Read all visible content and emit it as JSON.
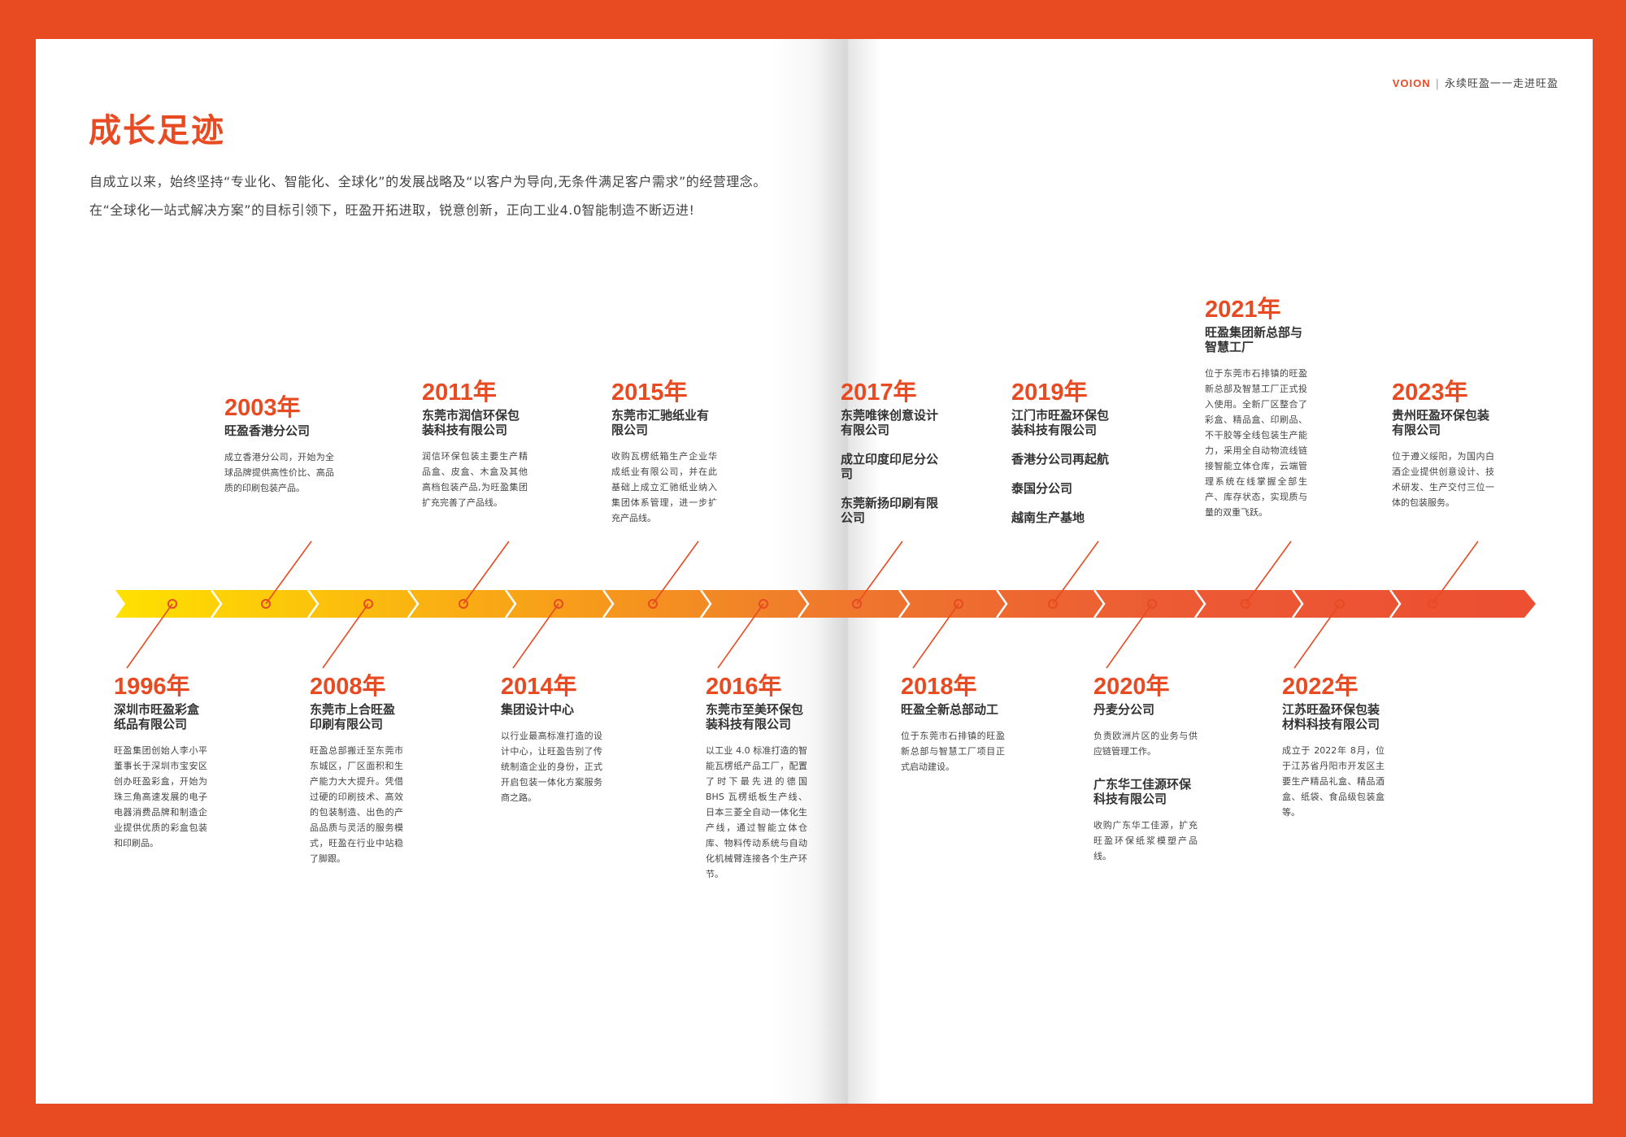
{
  "brand": {
    "logo": "VOION",
    "separator": "|",
    "slogan": "永续旺盈一一走进旺盈"
  },
  "title": "成长足迹",
  "intro": "自成立以来，始终坚持“专业化、智能化、全球化”的发展战略及“以客户为导向,无条件满足客户需求”的经营理念。在“全球化一站式解决方案”的目标引领下，旺盈开拓进取，锐意创新，正向工业4.0智能制造不断迈进!",
  "colors": {
    "accent": "#e84a22",
    "arrow_start": "#ffe100",
    "arrow_end": "#ec4f32"
  },
  "timeline": {
    "upper": [
      {
        "year": "2003年",
        "heading": "旺盈香港分公司",
        "desc": "成立香港分公司，开始为全球品牌提供高性价比、高品质的印刷包装产品。"
      },
      {
        "year": "2011年",
        "heading": "东莞市润信环保包装科技有限公司",
        "desc": "润信环保包装主要生产精品盒、皮盒、木盒及其他高档包装产品,为旺盈集团扩充完善了产品线。"
      },
      {
        "year": "2015年",
        "heading": "东莞市汇驰纸业有限公司",
        "desc": "收购瓦楞纸箱生产企业华成纸业有限公司，并在此基础上成立汇驰纸业纳入集团体系管理，进一步扩充产品线。"
      },
      {
        "year": "2017年",
        "heading": "东莞唯徕创意设计有限公司",
        "sub1": "成立印度印尼分公司",
        "sub2": "东莞新扬印刷有限公司"
      },
      {
        "year": "2019年",
        "heading": "江门市旺盈环保包装科技有限公司",
        "sub1": "香港分公司再起航",
        "sub2": "泰国分公司",
        "sub3": "越南生产基地"
      },
      {
        "year": "2021年",
        "heading": "旺盈集团新总部与智慧工厂",
        "desc": "位于东莞市石排镇的旺盈新总部及智慧工厂正式投入使用。全新厂区整合了彩盒、精品盒、印刷品、不干胶等全线包装生产能力，采用全自动物流线链接智能立体仓库，云端管理系统在线掌握全部生产、库存状态，实现质与量的双重飞跃。"
      },
      {
        "year": "2023年",
        "heading": "贵州旺盈环保包装有限公司",
        "desc": "位于遵义绥阳，为国内白酒企业提供创意设计、技术研发、生产交付三位一体的包装服务。"
      }
    ],
    "lower": [
      {
        "year": "1996年",
        "heading": "深圳市旺盈彩盒纸品有限公司",
        "desc": "旺盈集团创始人李小平董事长于深圳市宝安区创办旺盈彩盒，开始为珠三角高速发展的电子电器消费品牌和制造企业提供优质的彩盒包装和印刷品。"
      },
      {
        "year": "2008年",
        "heading": "东莞市上合旺盈印刷有限公司",
        "desc": "旺盈总部搬迁至东莞市东城区，厂区面积和生产能力大大提升。凭借过硬的印刷技术、高效的包装制造、出色的产品品质与灵活的服务模式，旺盈在行业中站稳了脚跟。"
      },
      {
        "year": "2014年",
        "heading": "集团设计中心",
        "desc": "以行业最高标准打造的设计中心，让旺盈告别了传统制造企业的身份，正式开启包装一体化方案服务商之路。"
      },
      {
        "year": "2016年",
        "heading": "东莞市至美环保包装科技有限公司",
        "desc": "以工业 4.0 标准打造的智能瓦楞纸产品工厂，配置了时下最先进的德国 BHS 瓦楞纸板生产线、日本三菱全自动一体化生产线，通过智能立体仓库、物料传动系统与自动化机械臂连接各个生产环节。"
      },
      {
        "year": "2018年",
        "heading": "旺盈全新总部动工",
        "desc": "位于东莞市石排镇的旺盈新总部与智慧工厂项目正式启动建设。"
      },
      {
        "year": "2020年",
        "heading": "丹麦分公司",
        "desc": "负责欧洲片区的业务与供应链管理工作。",
        "sub_heading": "广东华工佳源环保科技有限公司",
        "sub_desc": "收购广东华工佳源，扩充旺盈环保纸浆模塑产品线。"
      },
      {
        "year": "2022年",
        "heading": "江苏旺盈环保包装材料科技有限公司",
        "desc": "成立于 2022年 8月，位于江苏省丹阳市开发区主要生产精品礼盒、精品酒盒、纸袋、食品级包装盒等。"
      }
    ]
  }
}
